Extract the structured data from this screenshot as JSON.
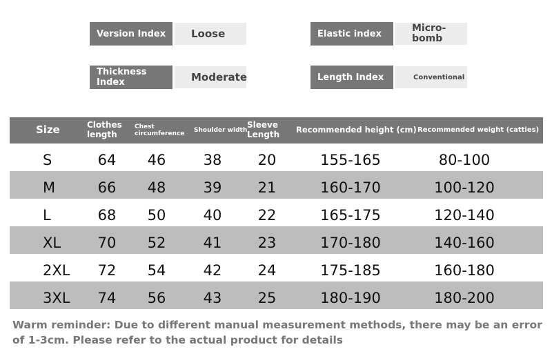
{
  "attributes": [
    {
      "label": "Version Index",
      "value": "Loose"
    },
    {
      "label": "Elastic index",
      "value": "Micro-bomb"
    },
    {
      "label": "Thickness Index",
      "value": "Moderate"
    },
    {
      "label": "Length Index",
      "value": "Conventional"
    }
  ],
  "table": {
    "header": [
      "Size",
      "Clothes length",
      "Chest circumference",
      "Shoulder width",
      "Sleeve Length",
      "Recommended height (cm)",
      "Recommended weight (catties)"
    ],
    "rows": [
      [
        "S",
        "64",
        "46",
        "38",
        "20",
        "155-165",
        "80-100"
      ],
      [
        "M",
        "66",
        "48",
        "39",
        "21",
        "160-170",
        "100-120"
      ],
      [
        "L",
        "68",
        "50",
        "40",
        "22",
        "165-175",
        "120-140"
      ],
      [
        "XL",
        "70",
        "52",
        "41",
        "23",
        "170-180",
        "140-160"
      ],
      [
        "2XL",
        "72",
        "54",
        "42",
        "24",
        "175-185",
        "160-180"
      ],
      [
        "3XL",
        "74",
        "56",
        "43",
        "25",
        "180-190",
        "180-200"
      ]
    ]
  },
  "note": "Warm reminder: Due to different manual measurement methods, there may be an error of 1-3cm. Please refer to the actual product for details"
}
